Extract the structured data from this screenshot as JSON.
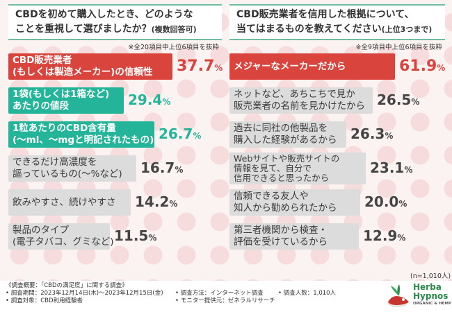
{
  "left_panel": {
    "title_line1": "CBDを初めて購入したとき、どのような",
    "title_line2": "ことを重視して選びましたか？",
    "title_note": "(複数回答可)",
    "subnote": "※全20項目中上位6項目を抜粋"
  },
  "right_panel": {
    "title_line1": "CBD販売業者を信用した根拠について、",
    "title_line2": "当てはまるものを教えてください",
    "title_note": "(上位3つまで)",
    "subnote": "※全9項目中上位6項目を抜粋"
  },
  "chart_data": [
    {
      "type": "bar",
      "title": "CBDを初めて購入したとき、どのようなことを重視して選びましたか？(複数回答可)",
      "categories": [
        [
          "CBD販売業者",
          "(もしくは製造メーカー)の信頼性"
        ],
        [
          "1袋(もしくは1箱など)",
          "あたりの値段"
        ],
        [
          "1粒あたりのCBD含有量",
          "(〜ml、〜mgと明記されたもの)"
        ],
        [
          "できるだけ高濃度を",
          "謳っているもの(〜%など)"
        ],
        [
          "飲みやすさ、続けやすさ"
        ],
        [
          "製品のタイプ",
          "(電子タバコ、グミなど)"
        ]
      ],
      "values": [
        37.7,
        29.4,
        26.7,
        16.7,
        14.2,
        11.5
      ],
      "unit": "%",
      "xlim": [
        0,
        40
      ]
    },
    {
      "type": "bar",
      "title": "CBD販売業者を信用した根拠について、当てはまるものを教えてください(上位3つまで)",
      "categories": [
        [
          "メジャーなメーカーだから"
        ],
        [
          "ネットなど、あちこちで見か",
          "販売業者の名前を見かけたから"
        ],
        [
          "過去に同社の他製品を",
          "購入した経験があるから"
        ],
        [
          "Webサイトや販売サイトの",
          "情報を見て、自分で",
          "信用できると思ったから"
        ],
        [
          "信頼できる友人や",
          "知人から勧められたから"
        ],
        [
          "第三者機関から検査・",
          "評価を受けているから"
        ]
      ],
      "values": [
        61.9,
        26.5,
        26.3,
        23.1,
        20.0,
        12.9
      ],
      "unit": "%",
      "xlim": [
        0,
        65
      ]
    }
  ],
  "n_label": "(n=1,010人)",
  "footer": {
    "line1": "《調査概要：「CBDの満足度」に関する調査》",
    "period": "• 調査期間：2023年12月14日(木)〜2023年12月15日(金)",
    "target": "• 調査対象：CBD利用経験者",
    "method": "• 調査方法：インターネット調査",
    "provider": "• モニター提供元：ゼネラルリサーチ",
    "count": "• 調査人数：1,010人"
  },
  "logo": {
    "line1": "Herba",
    "line2": "Hypnos",
    "tagline": "ORGANIC & HEMP"
  }
}
